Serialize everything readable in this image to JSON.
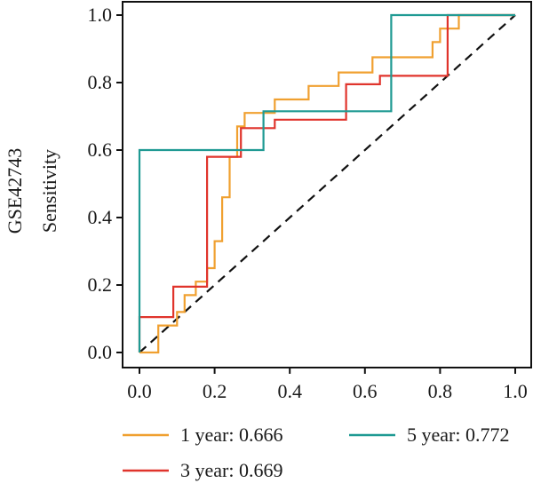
{
  "chart_data": {
    "type": "line",
    "title": "",
    "ylabel_group": "GSE42743",
    "ylabel": "Sensitivity",
    "xlabel": "",
    "xlim": [
      0,
      1
    ],
    "ylim": [
      0,
      1
    ],
    "xticks": [
      "0.0",
      "0.2",
      "0.4",
      "0.6",
      "0.8",
      "1.0"
    ],
    "yticks": [
      "0.0",
      "0.2",
      "0.4",
      "0.6",
      "0.8",
      "1.0"
    ],
    "grid": false,
    "legend_position": "bottom",
    "diagonal": true,
    "series": [
      {
        "name": "1 year: 0.666",
        "color": "#F0A030",
        "x": [
          0,
          0,
          0.05,
          0.05,
          0.1,
          0.1,
          0.12,
          0.12,
          0.15,
          0.15,
          0.18,
          0.18,
          0.2,
          0.2,
          0.22,
          0.22,
          0.24,
          0.24,
          0.26,
          0.26,
          0.28,
          0.28,
          0.36,
          0.36,
          0.45,
          0.45,
          0.53,
          0.53,
          0.62,
          0.62,
          0.67,
          0.67,
          0.78,
          0.78,
          0.8,
          0.8,
          0.82,
          0.82,
          0.85,
          0.85,
          1.0
        ],
        "y": [
          0,
          0,
          0,
          0.08,
          0.08,
          0.12,
          0.12,
          0.17,
          0.17,
          0.21,
          0.21,
          0.25,
          0.25,
          0.33,
          0.33,
          0.46,
          0.46,
          0.58,
          0.58,
          0.67,
          0.67,
          0.71,
          0.71,
          0.75,
          0.75,
          0.79,
          0.79,
          0.83,
          0.83,
          0.875,
          0.875,
          0.875,
          0.875,
          0.92,
          0.92,
          0.96,
          0.96,
          0.96,
          0.96,
          1.0,
          1.0
        ]
      },
      {
        "name": "3 year: 0.669",
        "color": "#E0342C",
        "x": [
          0,
          0,
          0.09,
          0.09,
          0.15,
          0.15,
          0.18,
          0.18,
          0.27,
          0.27,
          0.36,
          0.36,
          0.55,
          0.55,
          0.64,
          0.64,
          0.82,
          0.82,
          1.0
        ],
        "y": [
          0,
          0.105,
          0.105,
          0.195,
          0.195,
          0.195,
          0.195,
          0.58,
          0.58,
          0.665,
          0.665,
          0.69,
          0.69,
          0.795,
          0.795,
          0.82,
          0.82,
          1.0,
          1.0
        ]
      },
      {
        "name": "5 year: 0.772",
        "color": "#1F9A93",
        "x": [
          0,
          0,
          0.33,
          0.33,
          0.67,
          0.67,
          1.0
        ],
        "y": [
          0,
          0.6,
          0.6,
          0.715,
          0.715,
          1.0,
          1.0
        ]
      }
    ]
  }
}
